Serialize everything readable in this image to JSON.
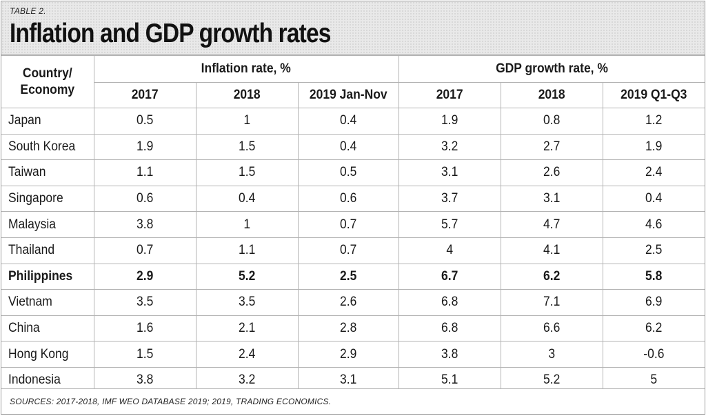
{
  "header": {
    "table_label": "TABLE 2.",
    "title": "Inflation and GDP growth rates"
  },
  "columns": {
    "country_header_line1": "Country/",
    "country_header_line2": "Economy",
    "inflation_group": "Inflation rate, %",
    "gdp_group": "GDP growth rate, %",
    "inflation_years": [
      "2017",
      "2018",
      "2019 Jan-Nov"
    ],
    "gdp_years": [
      "2017",
      "2018",
      "2019 Q1-Q3"
    ]
  },
  "rows": [
    {
      "country": "Japan",
      "inflation": [
        "0.5",
        "1",
        "0.4"
      ],
      "gdp": [
        "1.9",
        "0.8",
        "1.2"
      ]
    },
    {
      "country": "South Korea",
      "inflation": [
        "1.9",
        "1.5",
        "0.4"
      ],
      "gdp": [
        "3.2",
        "2.7",
        "1.9"
      ]
    },
    {
      "country": "Taiwan",
      "inflation": [
        "1.1",
        "1.5",
        "0.5"
      ],
      "gdp": [
        "3.1",
        "2.6",
        "2.4"
      ]
    },
    {
      "country": "Singapore",
      "inflation": [
        "0.6",
        "0.4",
        "0.6"
      ],
      "gdp": [
        "3.7",
        "3.1",
        "0.4"
      ]
    },
    {
      "country": "Malaysia",
      "inflation": [
        "3.8",
        "1",
        "0.7"
      ],
      "gdp": [
        "5.7",
        "4.7",
        "4.6"
      ]
    },
    {
      "country": "Thailand",
      "inflation": [
        "0.7",
        "1.1",
        "0.7"
      ],
      "gdp": [
        "4",
        "4.1",
        "2.5"
      ]
    },
    {
      "country": "Philippines",
      "inflation": [
        "2.9",
        "5.2",
        "2.5"
      ],
      "gdp": [
        "6.7",
        "6.2",
        "5.8"
      ],
      "highlight": true
    },
    {
      "country": "Vietnam",
      "inflation": [
        "3.5",
        "3.5",
        "2.6"
      ],
      "gdp": [
        "6.8",
        "7.1",
        "6.9"
      ]
    },
    {
      "country": "China",
      "inflation": [
        "1.6",
        "2.1",
        "2.8"
      ],
      "gdp": [
        "6.8",
        "6.6",
        "6.2"
      ]
    },
    {
      "country": "Hong Kong",
      "inflation": [
        "1.5",
        "2.4",
        "2.9"
      ],
      "gdp": [
        "3.8",
        "3",
        "-0.6"
      ]
    },
    {
      "country": "Indonesia",
      "inflation": [
        "3.8",
        "3.2",
        "3.1"
      ],
      "gdp": [
        "5.1",
        "5.2",
        "5"
      ]
    }
  ],
  "footer": {
    "sources": "SOURCES: 2017-2018, IMF WEO DATABASE 2019; 2019, TRADING ECONOMICS."
  }
}
